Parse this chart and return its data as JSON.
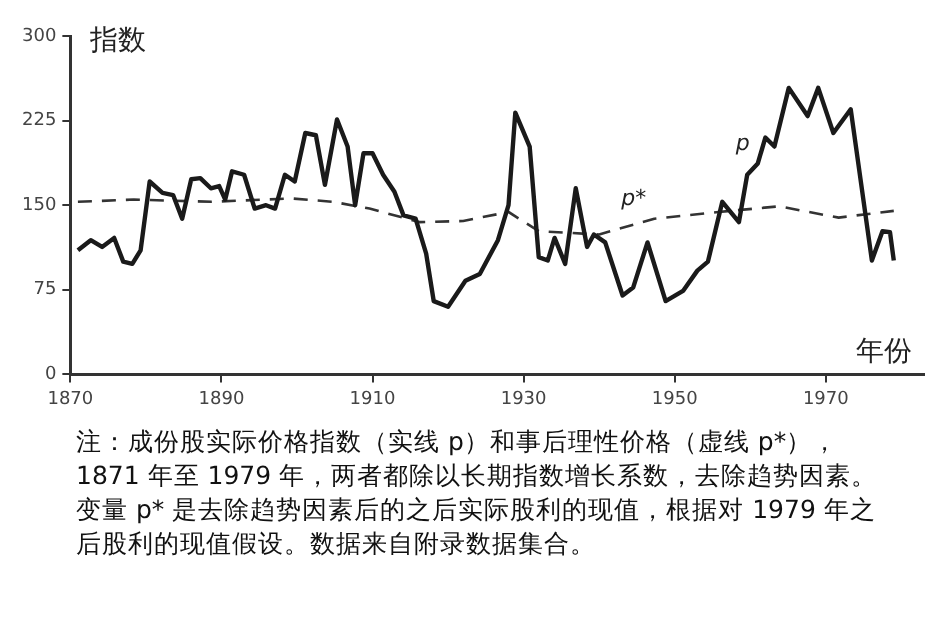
{
  "chart_data": {
    "type": "line",
    "xlabel": "年份",
    "ylabel": "指数",
    "xlim": [
      1870,
      1983
    ],
    "xticks": [
      1870,
      1890,
      1910,
      1930,
      1950,
      1970
    ],
    "ylim": [
      0,
      300
    ],
    "yticks": [
      0,
      75,
      150,
      225,
      300
    ],
    "grid": false,
    "legend": false,
    "marker": "none",
    "series": [
      {
        "color": "#1a1a1a",
        "line_style": "solid",
        "x": [
          1871,
          1872.7,
          1874.2,
          1875.8,
          1877,
          1878.2,
          1879.3,
          1880.5,
          1882.2,
          1883.6,
          1884.8,
          1886,
          1887.2,
          1888.6,
          1889.7,
          1890.5,
          1891.4,
          1893,
          1894.4,
          1895.9,
          1897.1,
          1898.4,
          1899.7,
          1901.1,
          1902.5,
          1903.7,
          1905.3,
          1906.7,
          1907.7,
          1908.8,
          1910,
          1911.4,
          1912.9,
          1914.1,
          1915.7,
          1917.1,
          1918.1,
          1920,
          1922.3,
          1924.2,
          1926.6,
          1928,
          1928.9,
          1930.8,
          1932,
          1933.2,
          1934.1,
          1935.5,
          1936.9,
          1938.4,
          1939.3,
          1940.8,
          1943.1,
          1944.5,
          1946.4,
          1948.8,
          1951.1,
          1953,
          1954.4,
          1956.3,
          1958.5,
          1959.6,
          1961,
          1962,
          1963.2,
          1965.1,
          1967.6,
          1969,
          1971,
          1973.3,
          1976.1,
          1977.5,
          1978.5,
          1979
        ],
        "values": [
          110,
          119,
          113,
          121,
          100,
          98,
          110,
          171,
          161,
          159,
          138,
          173,
          174,
          165,
          167,
          155,
          180,
          177,
          147,
          150,
          147,
          177,
          171,
          214,
          212,
          168,
          226,
          202,
          150,
          196,
          196,
          177,
          162,
          141,
          138,
          107,
          65,
          60,
          83,
          89,
          119,
          150,
          232,
          202,
          104,
          101,
          121,
          98,
          165,
          113,
          124,
          117,
          70,
          77,
          117,
          65,
          74,
          92,
          100,
          153,
          135,
          177,
          187,
          210,
          202,
          254,
          229,
          254,
          214,
          235,
          101,
          127,
          126,
          101
        ]
      },
      {
        "color": "#333333",
        "line_style": "dashed",
        "x": [
          1871,
          1878.4,
          1888.7,
          1899.2,
          1904.8,
          1909.6,
          1916.2,
          1922,
          1928,
          1932,
          1940,
          1947.3,
          1955.8,
          1963.8,
          1971.7,
          1979
        ],
        "values": [
          153,
          155,
          153,
          156,
          153,
          147,
          135,
          136,
          144,
          127,
          124,
          138,
          144,
          149,
          139,
          145
        ]
      }
    ],
    "annotations": [
      {
        "text": "p",
        "x": 1961,
        "y": 187
      },
      {
        "text": "p*",
        "x": 1947.3,
        "y": 138
      },
      "注：成份股实际价格指数（实线 p）和事后理性价格（虚线 p*），1871 年至 1979 年，两者都除以长期指数增长系数，去除趋势因素。变量 p* 是去除趋势因素后的之后实际股利的现值，根据对 1979 年之后股利的现值假设。数据来自附录数据集合。"
    ]
  }
}
